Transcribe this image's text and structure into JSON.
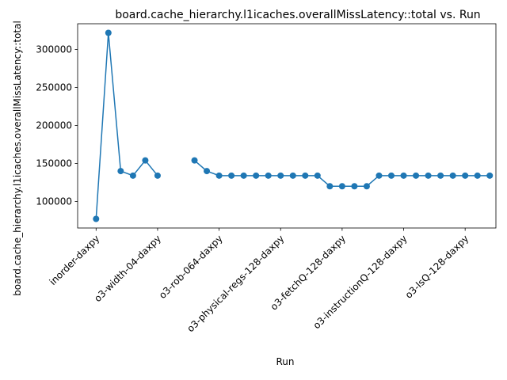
{
  "chart_data": {
    "type": "line",
    "title": "board.cache_hierarchy.l1icaches.overallMissLatency::total vs. Run",
    "xlabel": "Run",
    "ylabel": "board.cache_hierarchy.l1icaches.overallMissLatency::total",
    "x_tick_labels": [
      "inorder-daxpy",
      "o3-width-04-daxpy",
      "o3-rob-064-daxpy",
      "o3-physical-regs-128-daxpy",
      "o3-fetchQ-128-daxpy",
      "o3-instructionQ-128-daxpy",
      "o3-lsQ-128-daxpy"
    ],
    "x_tick_positions": [
      0,
      5,
      10,
      15,
      20,
      25,
      30
    ],
    "y_ticks": [
      100000,
      150000,
      200000,
      250000,
      300000
    ],
    "y_tick_labels": [
      "100000",
      "150000",
      "200000",
      "250000",
      "300000"
    ],
    "xlim": [
      -1.5,
      32.5
    ],
    "ylim": [
      65000,
      334000
    ],
    "grid": false,
    "series": [
      {
        "color": "#1f77b4",
        "x": [
          0,
          1,
          2,
          3,
          4,
          5,
          8,
          9,
          10,
          11,
          12,
          13,
          14,
          15,
          16,
          17,
          18,
          19,
          20,
          21,
          22,
          23,
          24,
          25,
          26,
          27,
          28,
          29,
          30,
          31,
          32
        ],
        "y": [
          77000,
          322000,
          140000,
          134000,
          154000,
          134000,
          154000,
          140000,
          134000,
          134000,
          134000,
          134000,
          134000,
          134000,
          134000,
          134000,
          134000,
          120000,
          120000,
          120000,
          120000,
          134000,
          134000,
          134000,
          134000,
          134000,
          134000,
          134000,
          134000,
          134000,
          134000
        ]
      }
    ]
  }
}
